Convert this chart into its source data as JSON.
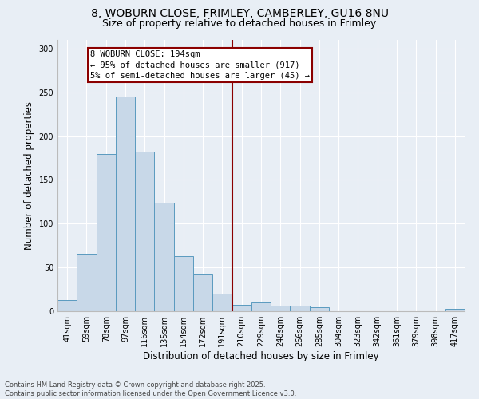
{
  "title_line1": "8, WOBURN CLOSE, FRIMLEY, CAMBERLEY, GU16 8NU",
  "title_line2": "Size of property relative to detached houses in Frimley",
  "xlabel": "Distribution of detached houses by size in Frimley",
  "ylabel": "Number of detached properties",
  "footnote": "Contains HM Land Registry data © Crown copyright and database right 2025.\nContains public sector information licensed under the Open Government Licence v3.0.",
  "bar_labels": [
    "41sqm",
    "59sqm",
    "78sqm",
    "97sqm",
    "116sqm",
    "135sqm",
    "154sqm",
    "172sqm",
    "191sqm",
    "210sqm",
    "229sqm",
    "248sqm",
    "266sqm",
    "285sqm",
    "304sqm",
    "323sqm",
    "342sqm",
    "361sqm",
    "379sqm",
    "398sqm",
    "417sqm"
  ],
  "bar_values": [
    13,
    66,
    180,
    245,
    182,
    124,
    63,
    43,
    20,
    7,
    10,
    6,
    6,
    5,
    0,
    0,
    0,
    0,
    0,
    0,
    3
  ],
  "bar_color": "#c8d8e8",
  "bar_edge_color": "#5a9abf",
  "vline_color": "#8b0000",
  "annotation_text": "8 WOBURN CLOSE: 194sqm\n← 95% of detached houses are smaller (917)\n5% of semi-detached houses are larger (45) →",
  "annotation_box_color": "#8b0000",
  "ylim": [
    0,
    310
  ],
  "yticks": [
    0,
    50,
    100,
    150,
    200,
    250,
    300
  ],
  "bg_color": "#e8eef5",
  "fig_bg_color": "#e8eef5",
  "grid_color": "#ffffff",
  "title_fontsize": 10,
  "subtitle_fontsize": 9,
  "axis_label_fontsize": 8.5,
  "tick_fontsize": 7,
  "annotation_fontsize": 7.5,
  "footnote_fontsize": 6
}
